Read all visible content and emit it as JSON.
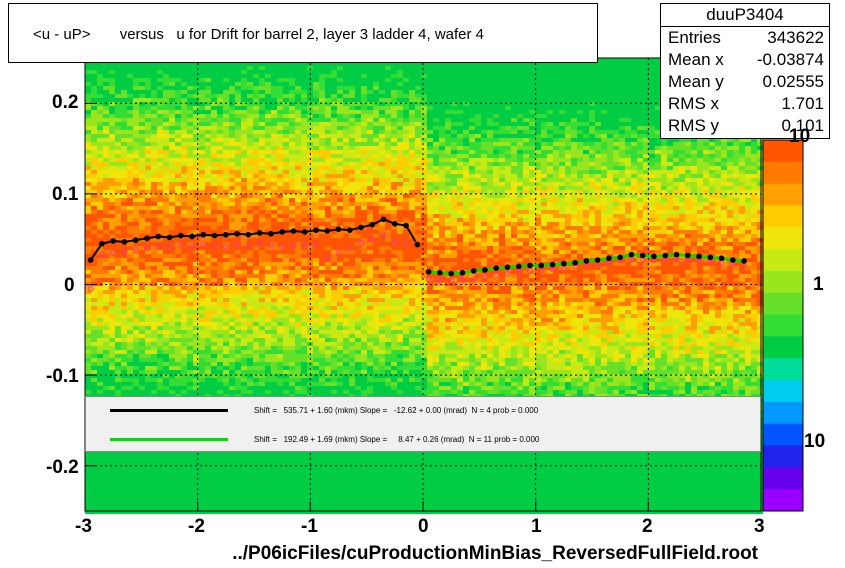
{
  "title": "<u - uP>       versus   u for Drift for barrel 2, layer 3 ladder 4, wafer 4",
  "stats": {
    "name": "duuP3404",
    "rows": [
      {
        "key": "Entries",
        "value": "343622"
      },
      {
        "key": "Mean x",
        "value": "-0.03874"
      },
      {
        "key": "Mean y",
        "value": "0.02555"
      },
      {
        "key": "RMS x",
        "value": "1.701"
      },
      {
        "key": "RMS y",
        "value": "0.101"
      }
    ]
  },
  "xlabel": "../P06icFiles/cuProductionMinBias_ReversedFullField.root",
  "legend": {
    "entries": [
      {
        "color": "#000000",
        "text": "Shift =   535.71 + 1.60 (mkm) Slope =   -12.62 + 0.00 (mrad)  N = 4 prob = 0.000"
      },
      {
        "color": "#00dd00",
        "text": "Shift =   192.49 + 1.69 (mkm) Slope =     8.47 + 0.26 (mrad)  N = 11 prob = 0.000"
      }
    ]
  },
  "colorbar_labels": [
    "10",
    "1",
    "10"
  ],
  "chart_data": {
    "type": "heatmap",
    "title": "<u - uP>       versus   u for Drift for barrel 2, layer 3 ladder 4, wafer 4",
    "xlabel": "../P06icFiles/cuProductionMinBias_ReversedFullField.root",
    "ylabel": "",
    "xlim": [
      -3,
      3
    ],
    "ylim": [
      -0.25,
      0.25
    ],
    "x_ticks": [
      "-3",
      "-2",
      "-1",
      "0",
      "1",
      "2",
      "3"
    ],
    "y_ticks": [
      "-0.2",
      "-0.1",
      "0",
      "0.1",
      "0.2"
    ],
    "grid": true,
    "colors": {
      "fit_black": "#000000",
      "fit_green": "#00dd00",
      "profile_open": "#ff3399"
    },
    "series": [
      {
        "marker": "black-filled",
        "x": [
          -2.95,
          -2.85,
          -2.75,
          -2.65,
          -2.55,
          -2.45,
          -2.35,
          -2.25,
          -2.15,
          -2.05,
          -1.95,
          -1.85,
          -1.75,
          -1.65,
          -1.55,
          -1.45,
          -1.35,
          -1.25,
          -1.15,
          -1.05,
          -0.95,
          -0.85,
          -0.75,
          -0.65,
          -0.55,
          -0.45,
          -0.35,
          -0.25,
          -0.15,
          -0.05,
          0.05,
          0.15,
          0.25,
          0.35,
          0.45,
          0.55,
          0.65,
          0.75,
          0.85,
          0.95,
          1.05,
          1.15,
          1.25,
          1.35,
          1.45,
          1.55,
          1.65,
          1.75,
          1.85,
          1.95,
          2.05,
          2.15,
          2.25,
          2.35,
          2.45,
          2.55,
          2.65,
          2.75,
          2.85
        ],
        "y": [
          0.027,
          0.045,
          0.048,
          0.047,
          0.049,
          0.051,
          0.053,
          0.052,
          0.054,
          0.053,
          0.055,
          0.054,
          0.055,
          0.056,
          0.055,
          0.057,
          0.056,
          0.058,
          0.059,
          0.058,
          0.06,
          0.059,
          0.061,
          0.06,
          0.063,
          0.066,
          0.072,
          0.067,
          0.065,
          0.044,
          0.014,
          0.013,
          0.012,
          0.013,
          0.015,
          0.016,
          0.018,
          0.019,
          0.02,
          0.021,
          0.021,
          0.022,
          0.023,
          0.024,
          0.026,
          0.027,
          0.029,
          0.03,
          0.033,
          0.032,
          0.031,
          0.032,
          0.033,
          0.032,
          0.031,
          0.03,
          0.029,
          0.027,
          0.026
        ]
      },
      {
        "marker": "pink-open",
        "x": [
          -2.95,
          -2.85,
          -2.75,
          -2.65,
          -2.55,
          -2.45,
          -2.35,
          -2.25,
          -2.15,
          -2.05,
          -1.95,
          -1.85,
          -1.75,
          -1.65,
          -1.55,
          -1.45,
          -1.35,
          -1.25,
          -1.15,
          -1.05,
          -0.95,
          -0.85,
          -0.75,
          -0.65,
          -0.55,
          -0.45,
          -0.35,
          -0.25,
          -0.15,
          -0.05,
          0.05,
          0.15,
          0.25,
          0.35,
          0.45,
          0.55,
          0.65,
          0.75,
          0.85,
          0.95,
          1.05,
          1.15,
          1.25,
          1.35,
          1.45,
          1.55,
          1.65,
          1.75,
          1.85,
          1.95,
          2.05,
          2.15,
          2.25,
          2.35,
          2.45,
          2.55,
          2.65,
          2.75,
          2.85
        ],
        "y": [
          -0.005,
          0.033,
          0.035,
          0.036,
          0.038,
          0.04,
          0.042,
          0.041,
          0.043,
          0.042,
          0.044,
          0.043,
          0.042,
          0.044,
          0.043,
          0.045,
          0.044,
          0.042,
          0.044,
          0.043,
          0.045,
          0.03,
          0.035,
          0.04,
          0.046,
          0.05,
          0.055,
          0.047,
          0.045,
          0.045,
          0.006,
          0.005,
          0.004,
          0.005,
          0.006,
          0.008,
          0.01,
          0.012,
          0.014,
          0.015,
          0.016,
          0.017,
          0.018,
          0.02,
          0.022,
          0.023,
          0.025,
          0.027,
          0.028,
          0.028,
          0.027,
          0.028,
          0.028,
          0.027,
          0.026,
          0.025,
          0.024,
          0.023,
          0.022
        ]
      }
    ]
  }
}
